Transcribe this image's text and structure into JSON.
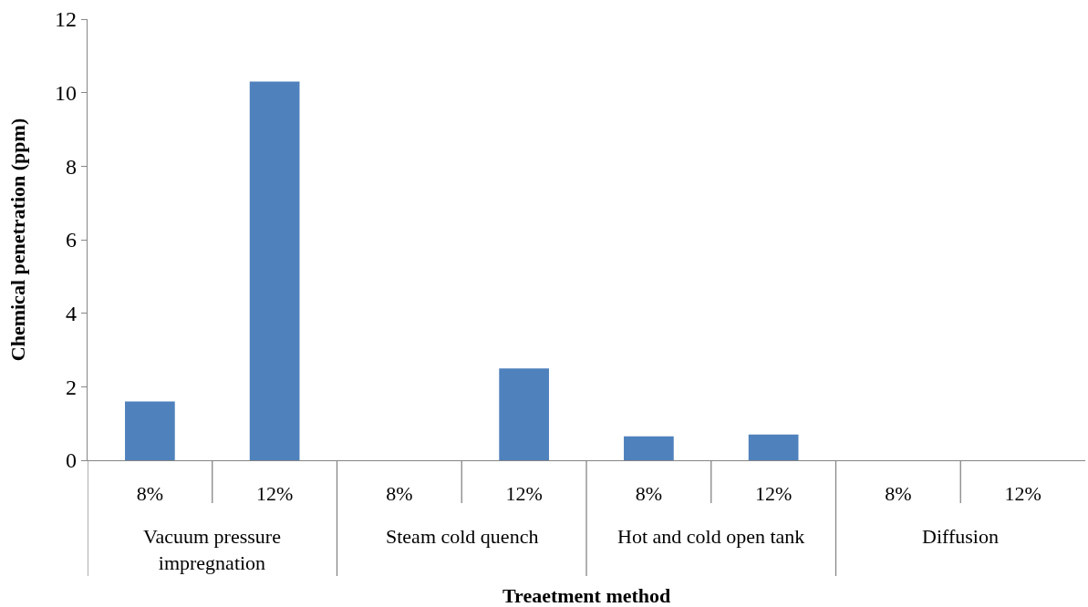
{
  "chart_data": {
    "type": "bar",
    "xlabel": "Treaetment method",
    "ylabel": "Chemical penetration (ppm)",
    "categories": [
      "8%",
      "12%",
      "8%",
      "12%",
      "8%",
      "12%",
      "8%",
      "12%"
    ],
    "values": [
      1.6,
      10.3,
      0,
      2.5,
      0.65,
      0.7,
      0,
      0
    ],
    "color": "#4f81bd",
    "ylim": [
      0,
      12
    ],
    "yticks": [
      0,
      2,
      4,
      6,
      8,
      10,
      12
    ],
    "annotations": [
      "Vacuum pressure impregnation",
      "Steam cold quench",
      "Hot and cold open tank",
      "Diffusion"
    ]
  }
}
